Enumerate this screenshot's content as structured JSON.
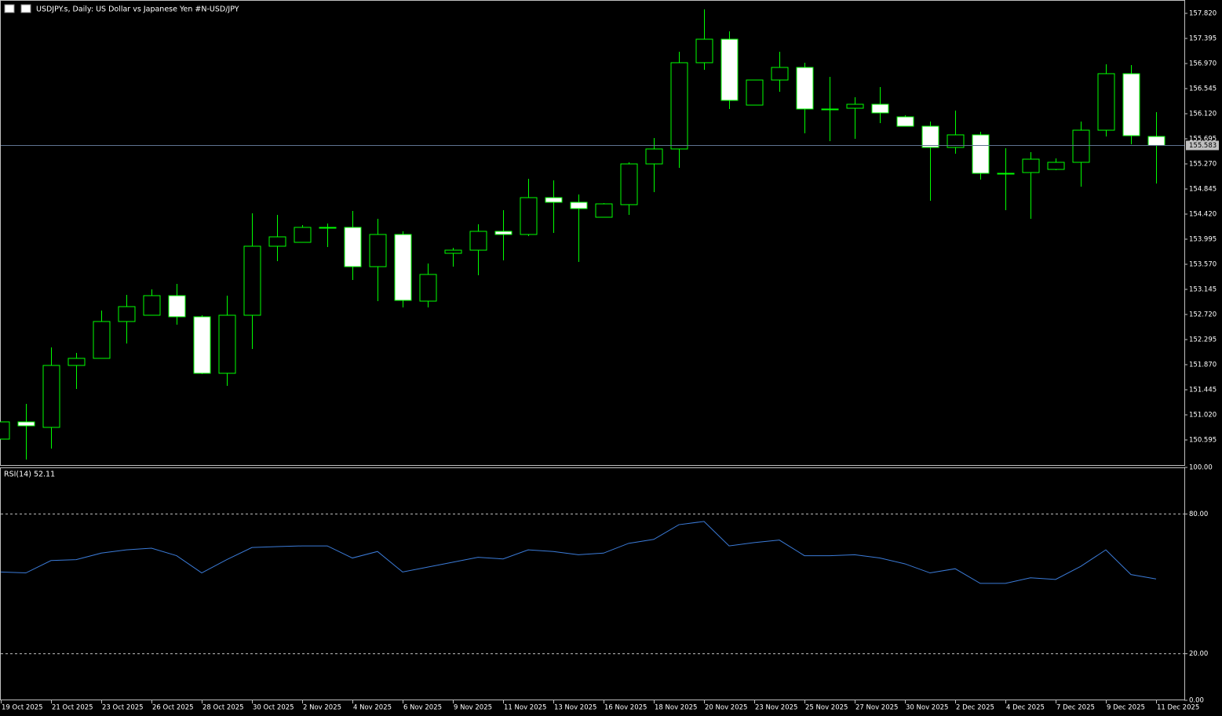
{
  "chart_data": [
    {
      "type": "candlestick",
      "title": "USDJPY.s, Daily:  US Dollar vs  Japanese Yen #N-USD/JPY",
      "categories": [
        "19 Oct 2025",
        null,
        "21 Oct 2025",
        null,
        "23 Oct 2025",
        null,
        "26 Oct 2025",
        null,
        "28 Oct 2025",
        null,
        "30 Oct 2025",
        null,
        "2 Nov 2025",
        null,
        "4 Nov 2025",
        null,
        "6 Nov 2025",
        null,
        "9 Nov 2025",
        null,
        "11 Nov 2025",
        null,
        "13 Nov 2025",
        null,
        "16 Nov 2025",
        null,
        "18 Nov 2025",
        null,
        "20 Nov 2025",
        null,
        "23 Nov 2025",
        null,
        "25 Nov 2025",
        null,
        "27 Nov 2025",
        null,
        "30 Nov 2025",
        null,
        "2 Dec 2025",
        null,
        "4 Dec 2025",
        null,
        "7 Dec 2025",
        null,
        "9 Dec 2025",
        null,
        "11 Dec 2025"
      ],
      "open": [
        150.609,
        150.901,
        150.808,
        151.857,
        151.977,
        152.601,
        152.707,
        153.039,
        152.681,
        151.724,
        152.707,
        153.876,
        153.942,
        154.195,
        154.195,
        153.53,
        154.075,
        152.946,
        153.756,
        153.809,
        154.128,
        154.075,
        154.699,
        154.62,
        154.367,
        154.58,
        155.27,
        155.523,
        156.984,
        157.382,
        156.266,
        156.691,
        156.904,
        156.2,
        156.213,
        156.28,
        156.067,
        155.908,
        155.549,
        155.762,
        155.111,
        155.124,
        155.177,
        155.297,
        155.841,
        156.798,
        155.735
      ],
      "high": [
        150.901,
        151.206,
        152.163,
        152.07,
        152.787,
        153.052,
        153.145,
        153.238,
        152.707,
        153.039,
        154.434,
        154.407,
        154.234,
        154.261,
        154.473,
        154.341,
        154.128,
        153.584,
        153.849,
        154.248,
        154.487,
        155.018,
        154.991,
        154.752,
        154.606,
        155.297,
        155.709,
        157.169,
        157.886,
        157.515,
        156.691,
        157.169,
        156.984,
        156.744,
        156.399,
        156.572,
        156.094,
        155.987,
        156.173,
        155.815,
        155.536,
        155.469,
        155.363,
        155.987,
        156.957,
        156.944,
        156.147
      ],
      "low": [
        150.609,
        150.263,
        150.449,
        151.459,
        151.977,
        152.229,
        152.707,
        152.548,
        151.711,
        151.512,
        152.136,
        153.623,
        153.942,
        153.862,
        153.305,
        152.946,
        152.84,
        152.84,
        153.53,
        153.384,
        153.637,
        154.048,
        154.102,
        153.61,
        154.367,
        154.407,
        154.792,
        155.204,
        156.864,
        156.2,
        156.266,
        156.492,
        155.788,
        155.655,
        155.695,
        155.961,
        155.908,
        154.646,
        155.443,
        155.005,
        154.487,
        154.341,
        155.164,
        154.885,
        155.735,
        155.602,
        154.938
      ],
      "close": [
        150.901,
        150.834,
        151.857,
        151.977,
        152.601,
        152.853,
        153.039,
        152.681,
        151.724,
        152.707,
        153.876,
        154.035,
        154.195,
        154.195,
        153.53,
        154.075,
        152.959,
        153.398,
        153.809,
        154.128,
        154.075,
        154.699,
        154.62,
        154.513,
        154.593,
        155.27,
        155.523,
        156.984,
        157.382,
        156.346,
        156.691,
        156.904,
        156.2,
        156.2,
        156.28,
        156.134,
        155.908,
        155.549,
        155.762,
        155.111,
        155.111,
        155.35,
        155.297,
        155.841,
        156.798,
        155.748,
        155.583
      ],
      "up_color": "#00ff00",
      "down_color": "#ffffff",
      "current_price": 155.583,
      "price_line_color": "#5f7390",
      "ylim": [
        150.17,
        158.046
      ],
      "yticks": [
        150.595,
        {
          "value": 151.02,
          "label": "151.020"
        },
        151.445,
        {
          "value": 151.87,
          "label": "151.870"
        },
        152.295,
        {
          "value": 152.72,
          "label": "152.720"
        },
        153.145,
        {
          "value": 153.57,
          "label": "153.570"
        },
        153.995,
        {
          "value": 154.42,
          "label": "154.420"
        },
        154.845,
        {
          "value": 155.27,
          "label": "155.270"
        },
        155.695,
        {
          "value": 156.12,
          "label": "156.120"
        },
        156.545,
        {
          "value": 156.97,
          "label": "156.970"
        },
        157.395,
        {
          "value": 157.82,
          "label": "157.820"
        }
      ],
      "grid": false
    },
    {
      "type": "line",
      "title": "RSI(14) 52.11",
      "color": "#3b7bd8",
      "values": [
        55.1,
        54.7,
        60.0,
        60.4,
        63.2,
        64.6,
        65.3,
        62.1,
        54.7,
        60.4,
        65.6,
        66.0,
        66.3,
        66.3,
        61.1,
        63.9,
        55.1,
        57.2,
        59.3,
        61.4,
        60.7,
        64.6,
        63.9,
        62.5,
        63.2,
        67.4,
        69.1,
        75.4,
        76.8,
        66.3,
        67.7,
        68.8,
        62.1,
        62.1,
        62.5,
        61.1,
        58.6,
        54.7,
        56.5,
        50.2,
        50.2,
        52.6,
        51.9,
        57.5,
        64.6,
        54.0,
        52.11
      ],
      "ylim": [
        0,
        100
      ],
      "yticks": [
        {
          "value": 100,
          "label": "100.00"
        },
        {
          "value": 80,
          "label": "80.00"
        },
        {
          "value": 20,
          "label": "20.00"
        },
        {
          "value": 0,
          "label": "0.00"
        }
      ],
      "grid": true
    }
  ]
}
